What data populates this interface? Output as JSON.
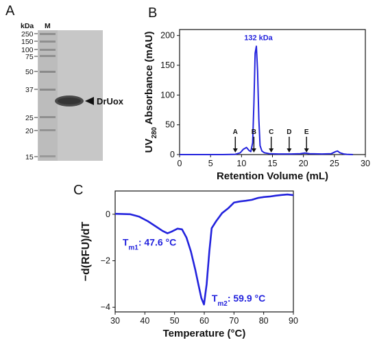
{
  "panels": {
    "a": {
      "letter": "A",
      "unit_label": "kDa",
      "marker_lane_label": "M",
      "marker_ladder": [
        "250",
        "150",
        "100",
        "75",
        "50",
        "37",
        "25",
        "20",
        "15"
      ],
      "band_label": "DrUox"
    },
    "b": {
      "letter": "B"
    },
    "c": {
      "letter": "C"
    }
  },
  "chart_data": [
    {
      "type": "line",
      "panel": "B",
      "xlabel": "Retention Volume (mL)",
      "ylabel_parts": [
        "UV",
        "280",
        " Absorbance (mAU)"
      ],
      "xlim": [
        0,
        30
      ],
      "ylim": [
        0,
        210
      ],
      "xticks": [
        0,
        5,
        10,
        15,
        20,
        25,
        30
      ],
      "yticks": [
        0,
        50,
        100,
        150,
        200
      ],
      "color": "#2222dd",
      "series": [
        {
          "x": [
            0,
            7,
            9,
            9.8,
            10.3,
            10.8,
            11.2,
            11.5,
            11.8,
            12.0,
            12.2,
            12.4,
            12.6,
            12.8,
            13.0,
            13.3,
            13.7,
            14.5,
            16,
            18,
            19.5,
            20.2,
            21,
            23,
            24.5,
            25.2,
            25.5,
            25.9,
            26.5,
            27,
            28
          ],
          "y": [
            0,
            0,
            0.5,
            3,
            9,
            12,
            7,
            5,
            20,
            85,
            170,
            182,
            140,
            60,
            15,
            6,
            3,
            1.5,
            1,
            1,
            1.5,
            2.5,
            1.5,
            1,
            1.5,
            5,
            6,
            3,
            1,
            0.5,
            0
          ]
        }
      ],
      "peak_annotation": "132 kDa",
      "standard_markers": [
        {
          "label": "A",
          "x": 9.0
        },
        {
          "label": "B",
          "x": 12.0
        },
        {
          "label": "C",
          "x": 14.8
        },
        {
          "label": "D",
          "x": 17.7
        },
        {
          "label": "E",
          "x": 20.5
        }
      ]
    },
    {
      "type": "line",
      "panel": "C",
      "xlabel": "Temperature (°C)",
      "ylabel": "−d(RFU)/dT",
      "xlim": [
        30,
        90
      ],
      "ylim": [
        -4.2,
        1.0
      ],
      "xticks": [
        30,
        40,
        50,
        60,
        70,
        80,
        90
      ],
      "yticks": [
        -4,
        -2,
        0
      ],
      "color": "#2222dd",
      "series": [
        {
          "x": [
            30,
            35,
            38,
            41,
            44,
            46,
            47.6,
            49,
            51,
            52.5,
            54,
            55.5,
            57,
            58,
            59,
            59.9,
            60.8,
            61.7,
            62.5,
            64,
            66,
            68,
            70,
            72,
            74,
            76,
            78,
            80,
            82,
            84,
            86,
            88,
            90
          ],
          "y": [
            0.02,
            0.0,
            -0.1,
            -0.3,
            -0.55,
            -0.72,
            -0.82,
            -0.75,
            -0.62,
            -0.65,
            -1.0,
            -1.6,
            -2.4,
            -3.0,
            -3.6,
            -3.88,
            -3.0,
            -1.6,
            -0.6,
            -0.3,
            0.05,
            0.25,
            0.5,
            0.55,
            0.58,
            0.62,
            0.7,
            0.74,
            0.76,
            0.8,
            0.83,
            0.85,
            0.82
          ]
        }
      ],
      "annotations": [
        {
          "sub": "m1",
          "text": ": 47.6 °C"
        },
        {
          "sub": "m2",
          "text": ": 59.9 °C"
        }
      ],
      "annotation_symbol": "T"
    }
  ]
}
